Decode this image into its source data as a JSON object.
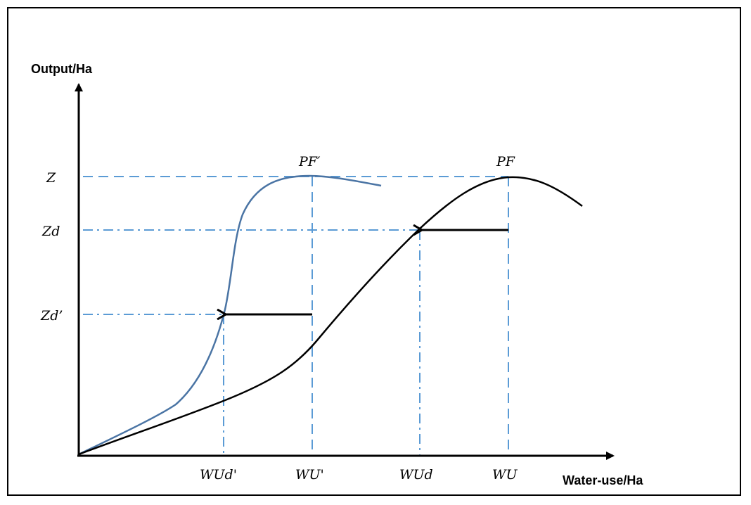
{
  "axes": {
    "y_title": "Output/Ha",
    "x_title": "Water-use/Ha"
  },
  "y_labels": {
    "z": "Z",
    "zd": "Zd",
    "zd_prime": "Zd’"
  },
  "x_labels": {
    "wud_prime": "WUd'",
    "wu_prime": "WU'",
    "wud": "WUd",
    "wu": "WU"
  },
  "curve_labels": {
    "pf_prime": "PF′",
    "pf": "PF"
  },
  "colors": {
    "blue_curve": "#4a74a4",
    "guide_line": "#5b9bd5",
    "black_curve": "#000000"
  }
}
